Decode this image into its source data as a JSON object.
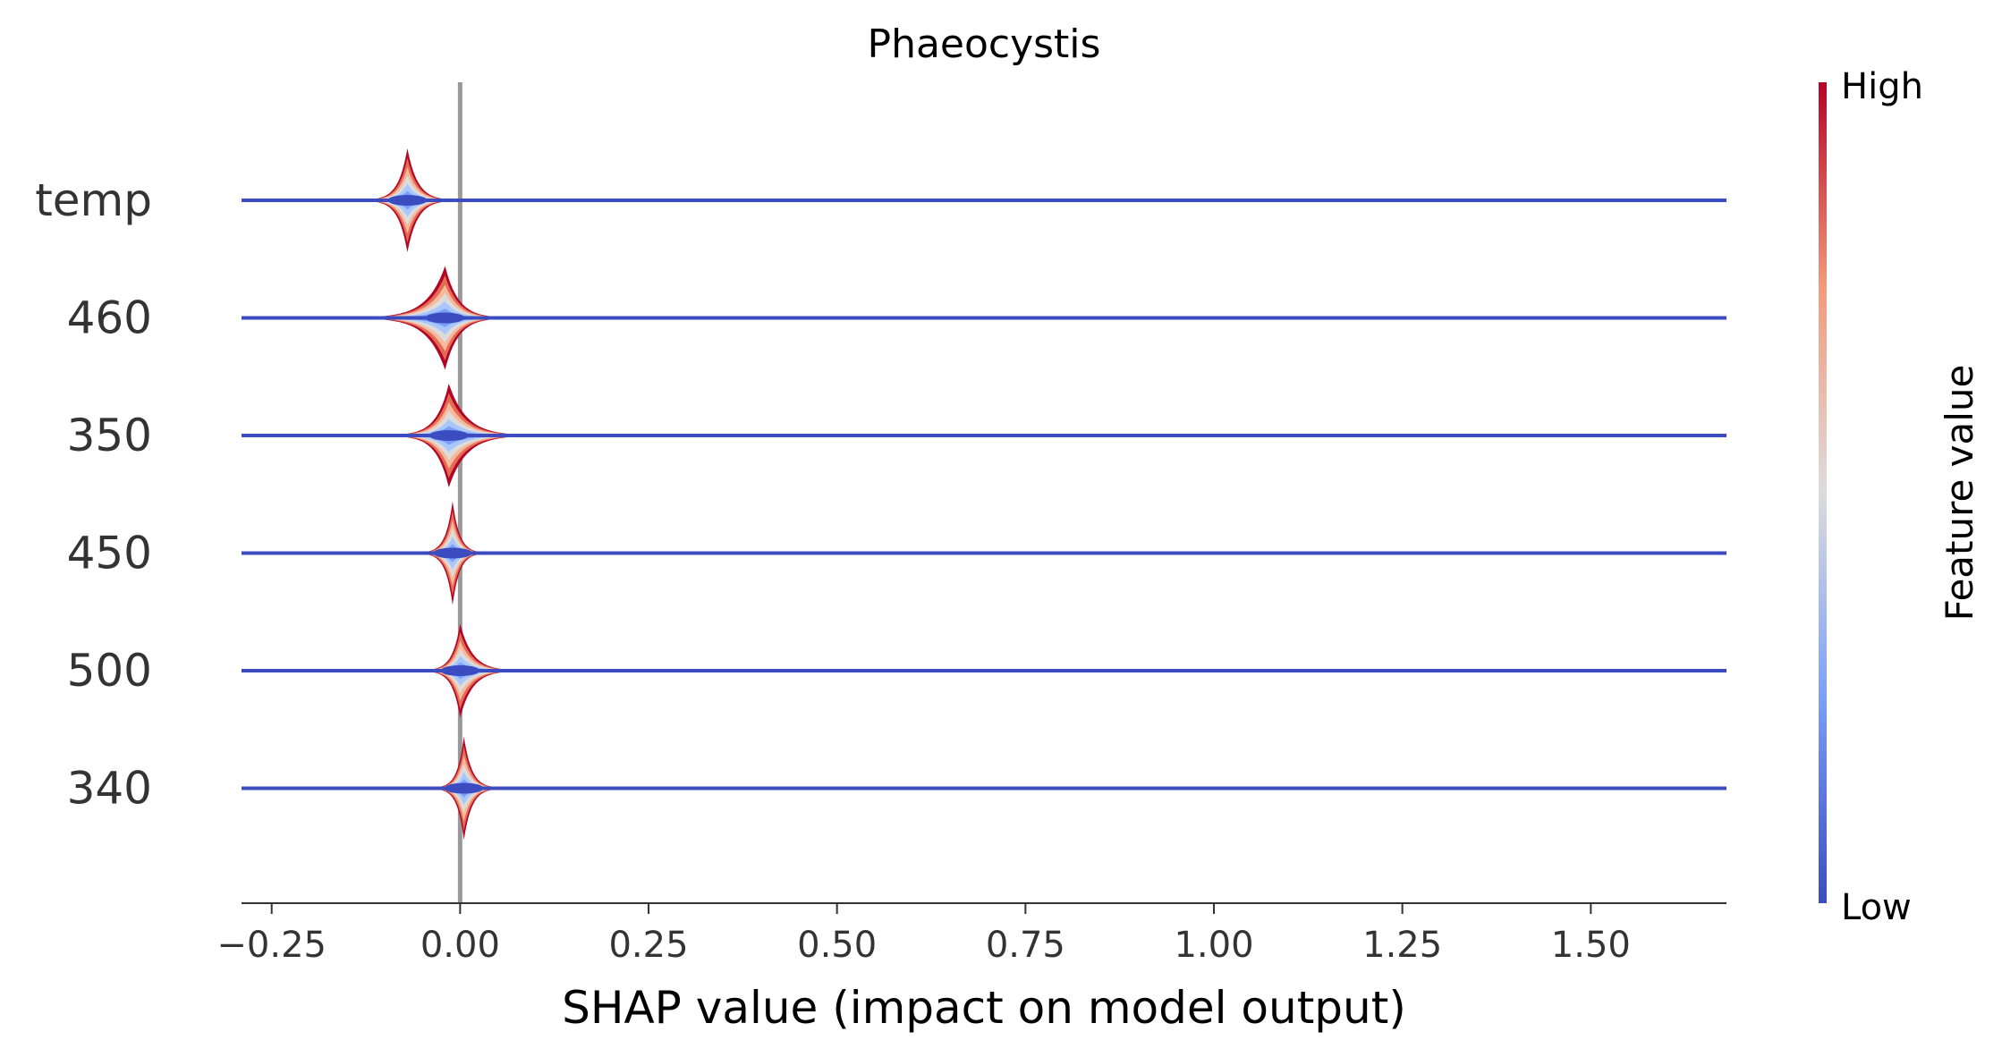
{
  "chart_data": {
    "type": "violin",
    "title": "Phaeocystis",
    "xlabel": "SHAP value (impact on model output)",
    "xlim": [
      -0.29,
      1.68
    ],
    "xticks": [
      -0.25,
      0.0,
      0.25,
      0.5,
      0.75,
      1.0,
      1.25,
      1.5
    ],
    "xtick_labels": [
      "−0.25",
      "0.00",
      "0.25",
      "0.50",
      "0.75",
      "1.00",
      "1.25",
      "1.50"
    ],
    "reference_line": 0.0,
    "features": [
      {
        "name": "temp",
        "center": -0.07,
        "peak": -0.07,
        "spread": 0.02,
        "height": 0.42,
        "extent": [
          -0.29,
          1.68
        ],
        "skew": 0.2
      },
      {
        "name": "460",
        "center": -0.02,
        "peak": -0.02,
        "spread": 0.035,
        "height": 0.42,
        "extent": [
          -0.29,
          1.68
        ],
        "skew": -0.5
      },
      {
        "name": "350",
        "center": -0.015,
        "peak": -0.015,
        "spread": 0.03,
        "height": 0.42,
        "extent": [
          -0.29,
          1.68
        ],
        "skew": 0.6
      },
      {
        "name": "450",
        "center": -0.01,
        "peak": -0.01,
        "spread": 0.015,
        "height": 0.42,
        "extent": [
          -0.29,
          1.68
        ],
        "skew": 0.0
      },
      {
        "name": "500",
        "center": 0.0,
        "peak": 0.0,
        "spread": 0.02,
        "height": 0.38,
        "extent": [
          -0.29,
          1.68
        ],
        "skew": 0.8
      },
      {
        "name": "340",
        "center": 0.005,
        "peak": 0.005,
        "spread": 0.015,
        "height": 0.42,
        "extent": [
          -0.29,
          1.68
        ],
        "skew": 0.3
      }
    ],
    "colorbar": {
      "title": "Feature value",
      "high_label": "High",
      "low_label": "Low",
      "colormap": "coolwarm",
      "high_color": "#b40426",
      "mid_color": "#dddcdc",
      "low_color": "#3b4cc0"
    },
    "colors": {
      "baseline": "#3b4cc0",
      "zero_line": "#999999",
      "axis": "#333333"
    }
  }
}
